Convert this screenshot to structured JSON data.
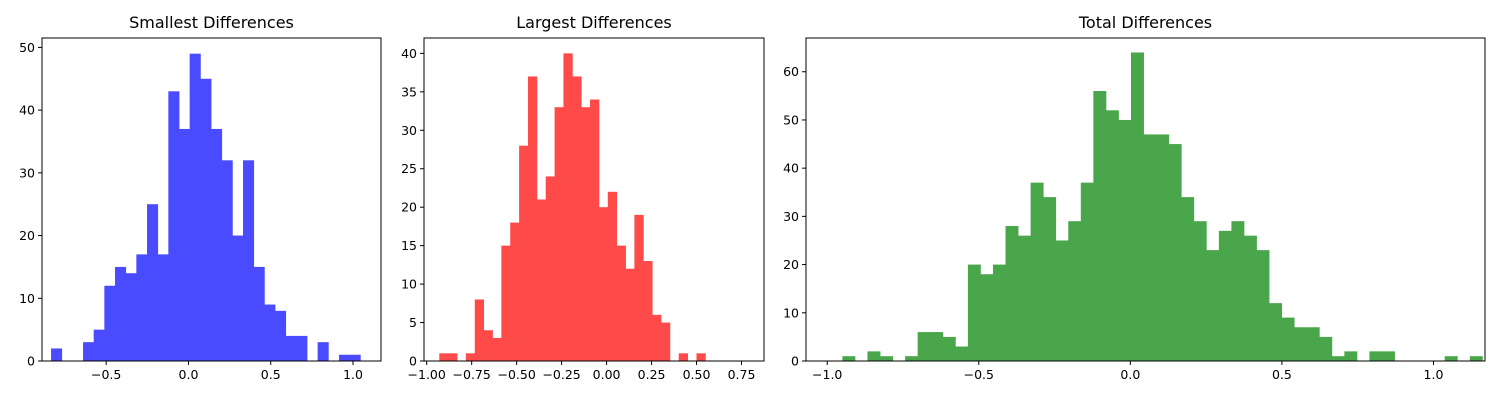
{
  "chart_data": [
    {
      "type": "bar",
      "title": "Smallest Differences",
      "color": "#4a4aff",
      "xlim": [
        -0.89,
        1.17
      ],
      "ylim": [
        0,
        51.5
      ],
      "xticks": [
        -0.5,
        0.0,
        0.5,
        1.0
      ],
      "xtick_labels": [
        "−0.5",
        "0.0",
        "0.5",
        "1.0"
      ],
      "yticks": [
        0,
        10,
        20,
        30,
        40,
        50
      ],
      "ytick_labels": [
        "0",
        "10",
        "20",
        "30",
        "40",
        "50"
      ],
      "bin_start": -0.835,
      "bin_width": 0.0648,
      "counts": [
        2,
        0,
        0,
        3,
        5,
        12,
        15,
        14,
        17,
        25,
        17,
        43,
        37,
        49,
        45,
        37,
        32,
        20,
        32,
        15,
        9,
        8,
        4,
        4,
        0,
        3,
        0,
        1,
        1
      ]
    },
    {
      "type": "bar",
      "title": "Largest Differences",
      "color": "#ff4a4a",
      "xlim": [
        -1.015,
        0.875
      ],
      "ylim": [
        0,
        42
      ],
      "xticks": [
        -1.0,
        -0.75,
        -0.5,
        -0.25,
        0.0,
        0.25,
        0.5,
        0.75
      ],
      "xtick_labels": [
        "−1.00",
        "−0.75",
        "−0.50",
        "−0.25",
        "0.00",
        "0.25",
        "0.50",
        "0.75"
      ],
      "yticks": [
        0,
        5,
        10,
        15,
        20,
        25,
        30,
        35,
        40
      ],
      "ytick_labels": [
        "0",
        "5",
        "10",
        "15",
        "20",
        "25",
        "30",
        "35",
        "40"
      ],
      "bin_start": -0.93,
      "bin_width": 0.0493,
      "counts": [
        1,
        1,
        0,
        1,
        8,
        4,
        3,
        15,
        18,
        28,
        37,
        21,
        24,
        33,
        40,
        37,
        33,
        34,
        20,
        22,
        15,
        12,
        19,
        13,
        6,
        5,
        0,
        1,
        0,
        1
      ]
    },
    {
      "type": "bar",
      "title": "Total Differences",
      "color": "#4aa64a",
      "xlim": [
        -1.07,
        1.17
      ],
      "ylim": [
        0,
        67
      ],
      "xticks": [
        -1.0,
        -0.5,
        0.0,
        0.5,
        1.0
      ],
      "xtick_labels": [
        "−1.0",
        "−0.5",
        "0.0",
        "0.5",
        "1.0"
      ],
      "yticks": [
        0,
        10,
        20,
        30,
        40,
        50,
        60
      ],
      "ytick_labels": [
        "0",
        "10",
        "20",
        "30",
        "40",
        "50",
        "60"
      ],
      "bin_start": -0.95,
      "bin_width": 0.0414,
      "counts": [
        1,
        0,
        2,
        1,
        0,
        1,
        6,
        6,
        5,
        3,
        20,
        18,
        20,
        28,
        26,
        37,
        34,
        25,
        29,
        37,
        56,
        52,
        50,
        64,
        47,
        47,
        45,
        34,
        29,
        23,
        27,
        29,
        26,
        23,
        12,
        9,
        7,
        7,
        5,
        1,
        2,
        0,
        2,
        2,
        0,
        0,
        0,
        0,
        1,
        0,
        1
      ]
    }
  ]
}
